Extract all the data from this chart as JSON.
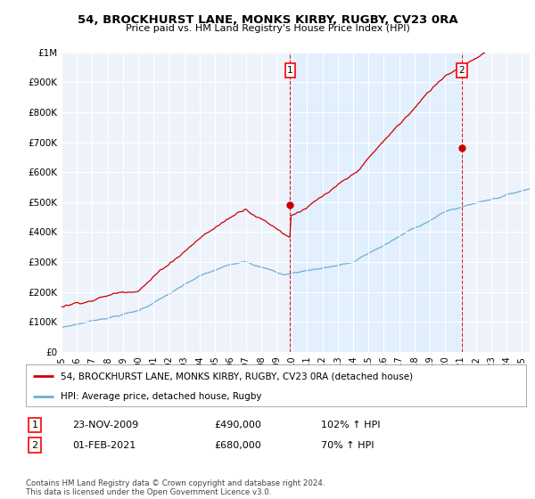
{
  "title": "54, BROCKHURST LANE, MONKS KIRBY, RUGBY, CV23 0RA",
  "subtitle": "Price paid vs. HM Land Registry's House Price Index (HPI)",
  "legend_line1": "54, BROCKHURST LANE, MONKS KIRBY, RUGBY, CV23 0RA (detached house)",
  "legend_line2": "HPI: Average price, detached house, Rugby",
  "annotation1_date": "23-NOV-2009",
  "annotation1_price": "£490,000",
  "annotation1_hpi": "102% ↑ HPI",
  "annotation2_date": "01-FEB-2021",
  "annotation2_price": "£680,000",
  "annotation2_hpi": "70% ↑ HPI",
  "footer": "Contains HM Land Registry data © Crown copyright and database right 2024.\nThis data is licensed under the Open Government Licence v3.0.",
  "hpi_color": "#6baed6",
  "price_color": "#cc0000",
  "marker1_x": 2009.9,
  "marker1_y": 490000,
  "marker2_x": 2021.08,
  "marker2_y": 680000,
  "vline1_x": 2009.9,
  "vline2_x": 2021.08,
  "ylim": [
    0,
    1000000
  ],
  "xlim_start": 1995.0,
  "xlim_end": 2025.5,
  "background_color": "#ffffff",
  "plot_bg_color": "#eef3fb",
  "shade_color": "#ddeeff"
}
